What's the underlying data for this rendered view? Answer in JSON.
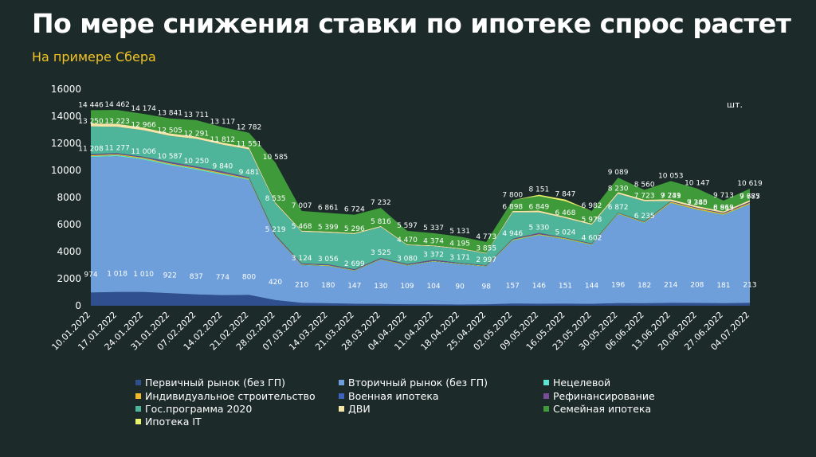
{
  "title": "По мере снижения ставки по ипотеке спрос растет",
  "subtitle": "На примере Сбера",
  "unit": "шт.",
  "chart_data": {
    "type": "area",
    "stacked": true,
    "ylim": [
      0,
      16000
    ],
    "yticks": [
      0,
      2000,
      4000,
      6000,
      8000,
      10000,
      12000,
      14000,
      16000
    ],
    "grid": false,
    "legend_position": "bottom",
    "categories": [
      "10.01.2022",
      "17.01.2022",
      "24.01.2022",
      "31.01.2022",
      "07.02.2022",
      "14.02.2022",
      "21.02.2022",
      "28.02.2022",
      "07.03.2022",
      "14.03.2022",
      "21.03.2022",
      "28.03.2022",
      "04.04.2022",
      "11.04.2022",
      "18.04.2022",
      "25.04.2022",
      "02.05.2022",
      "09.05.2022",
      "16.05.2022",
      "23.05.2022",
      "30.05.2022",
      "06.06.2022",
      "13.06.2022",
      "20.06.2022",
      "27.06.2022",
      "04.07.2022"
    ],
    "series": [
      {
        "name": "Первичный рынок (без ГП)",
        "color": "#2f4f8f",
        "values": [
          974,
          1018,
          1010,
          922,
          837,
          774,
          800,
          420,
          210,
          180,
          147,
          130,
          109,
          104,
          90,
          98,
          157,
          146,
          151,
          144,
          196,
          182,
          214,
          208,
          181,
          213
        ]
      },
      {
        "name": "Вторичный рынок (без ГП)",
        "color": "#6f9fda",
        "values": [
          10000,
          10030,
          9780,
          9450,
          9200,
          8880,
          8480,
          4650,
          2780,
          2750,
          2420,
          3260,
          2840,
          3140,
          2960,
          2790,
          4640,
          5050,
          4740,
          4320,
          6550,
          5920,
          7350,
          6860,
          6510,
          7270
        ]
      },
      {
        "name": "Нецелевой",
        "color": "#5fe3d0",
        "values": [
          80,
          80,
          80,
          80,
          80,
          80,
          70,
          40,
          30,
          30,
          30,
          30,
          30,
          30,
          30,
          30,
          40,
          40,
          40,
          40,
          40,
          40,
          40,
          40,
          40,
          40
        ]
      },
      {
        "name": "Индивидуальное строительство",
        "color": "#f0b82a",
        "values": [
          70,
          70,
          70,
          70,
          70,
          70,
          60,
          40,
          40,
          40,
          40,
          40,
          40,
          40,
          40,
          40,
          50,
          50,
          50,
          50,
          50,
          50,
          80,
          80,
          80,
          80
        ]
      },
      {
        "name": "Военная ипотека",
        "color": "#3f63b8",
        "values": [
          40,
          40,
          40,
          40,
          40,
          40,
          40,
          30,
          30,
          30,
          30,
          30,
          30,
          30,
          30,
          30,
          30,
          30,
          30,
          30,
          30,
          30,
          30,
          30,
          30,
          30
        ]
      },
      {
        "name": "Рефинансирование",
        "color": "#7a4c9a",
        "values": [
          44,
          39,
          26,
          75,
          63,
          76,
          30,
          59,
          34,
          26,
          32,
          35,
          31,
          48,
          21,
          9,
          29,
          64,
          13,
          19,
          6,
          11,
          17,
          22,
          22,
          52
        ]
      },
      {
        "name": "Гос.программа 2020",
        "color": "#4fb59a",
        "values": [
          2042,
          1946,
          1960,
          1918,
          2041,
          1972,
          2071,
          2296,
          2344,
          2343,
          2597,
          2291,
          1390,
          1002,
          1024,
          858,
          1952,
          1519,
          1444,
          1375,
          1400,
          1488,
          0,
          0,
          0,
          0
        ]
      },
      {
        "name": "ДВИ",
        "color": "#f5e6a8",
        "values": [
          220,
          220,
          200,
          180,
          170,
          160,
          150,
          100,
          80,
          75,
          70,
          70,
          60,
          60,
          55,
          50,
          100,
          130,
          100,
          90,
          120,
          120,
          130,
          130,
          110,
          120
        ]
      },
      {
        "name": "Семейная ипотека",
        "color": "#3f9a3a",
        "values": [
          976,
          1019,
          1008,
          1106,
          1210,
          1145,
          1081,
          2950,
          1459,
          1387,
          1358,
          1346,
          997,
          903,
          861,
          808,
          802,
          1072,
          1149,
          934,
          1070,
          717,
          1348,
          1297,
          794,
          842
        ]
      },
      {
        "name": "Ипотека IT",
        "color": "#e8f16a",
        "values": [
          0,
          0,
          0,
          0,
          0,
          0,
          0,
          0,
          0,
          0,
          0,
          0,
          0,
          0,
          0,
          0,
          0,
          100,
          130,
          0,
          0,
          0,
          0,
          0,
          0,
          0
        ]
      }
    ],
    "data_labels": [
      {
        "level": "primary",
        "values": [
          "974",
          "1 018",
          "1 010",
          "922",
          "837",
          "774",
          "800",
          "420",
          "210",
          "180",
          "147",
          "130",
          "109",
          "104",
          "90",
          "98",
          "157",
          "146",
          "151",
          "144",
          "196",
          "182",
          "214",
          "208",
          "181",
          "213"
        ]
      },
      {
        "level": "secondary",
        "values": [
          "11 208",
          "11 277",
          "11 006",
          "10 587",
          "10 250",
          "9 840",
          "9 481",
          "5 219",
          "3 124",
          "3 056",
          "2 699",
          "3 525",
          "3 080",
          "3 372",
          "3 171",
          "2 997",
          "4 946",
          "5 330",
          "5 024",
          "4 602",
          "6 872",
          "6 235",
          "7 731",
          "7 240",
          "6 863",
          "7 685"
        ]
      },
      {
        "level": "gp2020",
        "values": [
          "13 250",
          "13 223",
          "12 966",
          "12 505",
          "12 291",
          "11 812",
          "11 551",
          "8 535",
          "5 468",
          "5 399",
          "5 296",
          "5 816",
          "4 470",
          "4 374",
          "4 195",
          "3 855",
          "6 898",
          "6 849",
          "6 468",
          "5 978",
          "8 230",
          "7 723",
          "9 249",
          "9 385",
          "8 919",
          "9 777"
        ]
      },
      {
        "level": "total",
        "values": [
          "14 446",
          "14 462",
          "14 174",
          "13 841",
          "13 711",
          "13 117",
          "12 782",
          "10 585",
          "7 007",
          "6 861",
          "6 724",
          "7 232",
          "5 597",
          "5 337",
          "5 131",
          "4 773",
          "7 800",
          "8 151",
          "7 847",
          "6 982",
          "9 089",
          "8 560",
          "10 053",
          "10 147",
          "9 713",
          "10 619"
        ]
      }
    ]
  }
}
